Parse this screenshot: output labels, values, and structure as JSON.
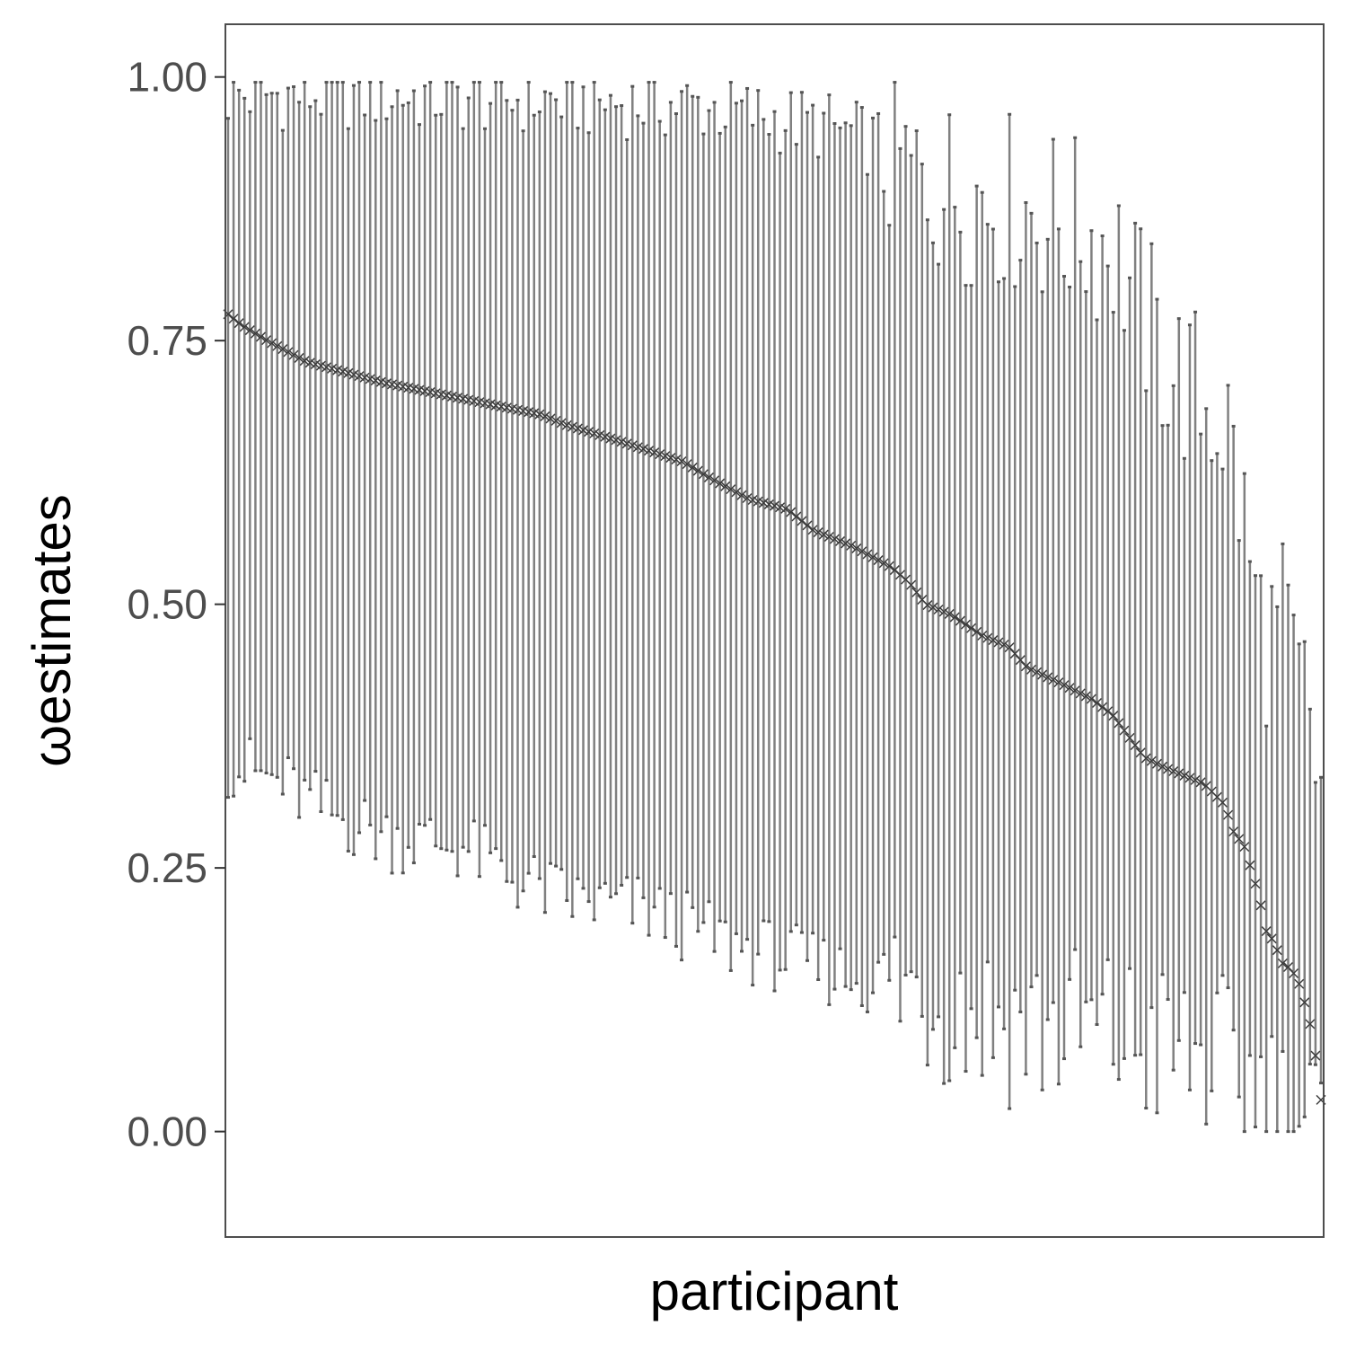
{
  "chart_data": {
    "type": "errorbar",
    "title": "",
    "xlabel": "participant",
    "ylabel": "ωestimates",
    "ylim": [
      -0.1,
      1.05
    ],
    "yticks": [
      {
        "value": 0.0,
        "label": "0.00"
      },
      {
        "value": 0.25,
        "label": "0.25"
      },
      {
        "value": 0.5,
        "label": "0.50"
      },
      {
        "value": 0.75,
        "label": "0.75"
      },
      {
        "value": 1.0,
        "label": "1.00"
      }
    ],
    "x_ticks_shown": false,
    "grid": false,
    "legend": "none",
    "n_participants": 201,
    "point_marker": "x",
    "series": [
      {
        "estimate_anchors": [
          [
            0,
            0.775
          ],
          [
            5,
            0.765
          ],
          [
            15,
            0.75
          ],
          [
            30,
            0.73
          ],
          [
            60,
            0.71
          ],
          [
            90,
            0.695
          ],
          [
            120,
            0.68
          ],
          [
            130,
            0.67
          ],
          [
            150,
            0.655
          ],
          [
            175,
            0.635
          ],
          [
            185,
            0.62
          ],
          [
            200,
            0.6
          ],
          [
            215,
            0.59
          ],
          [
            225,
            0.57
          ],
          [
            240,
            0.555
          ],
          [
            255,
            0.535
          ],
          [
            262,
            0.52
          ],
          [
            268,
            0.5
          ],
          [
            278,
            0.49
          ],
          [
            290,
            0.47
          ],
          [
            300,
            0.46
          ],
          [
            307,
            0.44
          ],
          [
            320,
            0.425
          ],
          [
            332,
            0.41
          ],
          [
            340,
            0.395
          ],
          [
            352,
            0.355
          ],
          [
            360,
            0.345
          ],
          [
            375,
            0.33
          ],
          [
            383,
            0.31
          ],
          [
            387,
            0.28
          ],
          [
            390,
            0.275
          ],
          [
            393,
            0.25
          ],
          [
            396,
            0.225
          ],
          [
            399,
            0.19
          ],
          [
            402,
            0.18
          ],
          [
            405,
            0.16
          ],
          [
            408,
            0.155
          ],
          [
            411,
            0.145
          ],
          [
            414,
            0.12
          ],
          [
            417,
            0.09
          ],
          [
            420,
            0.03
          ]
        ],
        "upper_anchors": [
          [
            0,
            0.99
          ],
          [
            60,
            0.99
          ],
          [
            120,
            0.985
          ],
          [
            180,
            0.98
          ],
          [
            230,
            0.96
          ],
          [
            255,
            0.94
          ],
          [
            265,
            0.92
          ],
          [
            280,
            0.91
          ],
          [
            300,
            0.9
          ],
          [
            320,
            0.88
          ],
          [
            340,
            0.86
          ],
          [
            350,
            0.8
          ],
          [
            360,
            0.75
          ],
          [
            370,
            0.72
          ],
          [
            380,
            0.7
          ],
          [
            385,
            0.68
          ],
          [
            390,
            0.6
          ],
          [
            395,
            0.52
          ],
          [
            400,
            0.48
          ],
          [
            405,
            0.5
          ],
          [
            410,
            0.45
          ],
          [
            415,
            0.42
          ],
          [
            420,
            0.33
          ]
        ],
        "lower_anchors": [
          [
            0,
            0.35
          ],
          [
            20,
            0.33
          ],
          [
            40,
            0.3
          ],
          [
            60,
            0.28
          ],
          [
            90,
            0.27
          ],
          [
            110,
            0.24
          ],
          [
            130,
            0.22
          ],
          [
            160,
            0.21
          ],
          [
            190,
            0.18
          ],
          [
            220,
            0.16
          ],
          [
            250,
            0.14
          ],
          [
            270,
            0.13
          ],
          [
            290,
            0.11
          ],
          [
            310,
            0.1
          ],
          [
            340,
            0.09
          ],
          [
            370,
            0.07
          ],
          [
            385,
            0.06
          ],
          [
            395,
            0.04
          ],
          [
            405,
            0.02
          ],
          [
            415,
            0.01
          ],
          [
            420,
            0.0
          ]
        ],
        "anchor_x_domain": [
          0,
          420
        ],
        "bar_color": "#808080",
        "marker_color": "#3c3c3c"
      }
    ]
  },
  "colors": {
    "panel_border": "#4d4d4d",
    "tick": "#333333"
  }
}
